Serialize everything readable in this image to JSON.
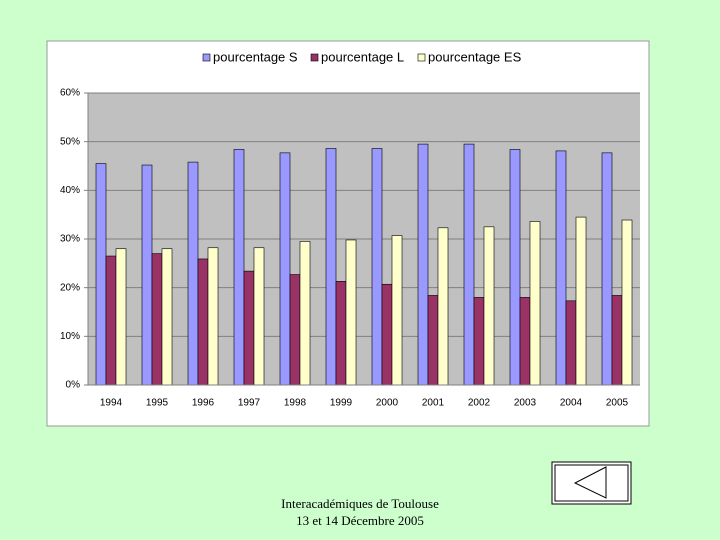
{
  "chart_data": {
    "type": "bar",
    "categories": [
      "1994",
      "1995",
      "1996",
      "1997",
      "1998",
      "1999",
      "2000",
      "2001",
      "2002",
      "2003",
      "2004",
      "2005"
    ],
    "series": [
      {
        "name": "pourcentage S",
        "color": "#9999ff",
        "values": [
          45.5,
          45.2,
          45.8,
          48.4,
          47.7,
          48.6,
          48.6,
          49.5,
          49.5,
          48.4,
          48.1,
          47.7
        ]
      },
      {
        "name": "pourcentage L",
        "color": "#993366",
        "values": [
          26.5,
          27.0,
          25.9,
          23.4,
          22.7,
          21.3,
          20.7,
          18.4,
          18.0,
          18.0,
          17.3,
          18.4
        ]
      },
      {
        "name": "pourcentage ES",
        "color": "#ffffcc",
        "values": [
          28.0,
          28.0,
          28.2,
          28.2,
          29.5,
          29.8,
          30.7,
          32.3,
          32.5,
          33.6,
          34.5,
          33.9
        ]
      }
    ],
    "ylim": [
      0,
      60
    ],
    "yticks": [
      {
        "value": 0,
        "label": "0%"
      },
      {
        "value": 10,
        "label": "10%"
      },
      {
        "value": 20,
        "label": "20%"
      },
      {
        "value": 30,
        "label": "30%"
      },
      {
        "value": 40,
        "label": "40%"
      },
      {
        "value": 50,
        "label": "50%"
      },
      {
        "value": 60,
        "label": "60%"
      }
    ],
    "grid": true,
    "legend": "top"
  },
  "footer": [
    "Interacadémiques de Toulouse",
    "13 et 14 Décembre 2005"
  ]
}
